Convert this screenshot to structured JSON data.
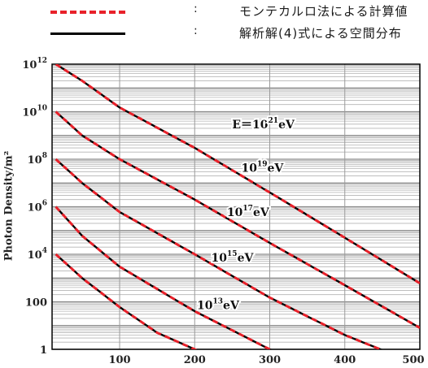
{
  "legend": {
    "monte_carlo": {
      "symbol": ":",
      "label": "モンテカルロ法による計算値",
      "color": "#e8212a"
    },
    "analytical": {
      "symbol": ":",
      "label": "解析解(4)式による空間分布",
      "color": "#000000"
    }
  },
  "chart_data": {
    "type": "line",
    "title": "",
    "xlabel": "",
    "ylabel": "Photon Density/m²",
    "xlim": [
      10,
      500
    ],
    "ylim": [
      1,
      1000000000000
    ],
    "yscale": "log",
    "grid": true,
    "x_ticks": [
      "100",
      "200",
      "300",
      "400",
      "500"
    ],
    "y_ticks": [
      {
        "base": "10",
        "exp": "12",
        "value": 1000000000000
      },
      {
        "base": "10",
        "exp": "10",
        "value": 10000000000
      },
      {
        "base": "10",
        "exp": "8",
        "value": 100000000
      },
      {
        "base": "10",
        "exp": "6",
        "value": 1000000
      },
      {
        "base": "10",
        "exp": "4",
        "value": 10000
      },
      {
        "base": "100",
        "exp": "",
        "value": 100
      },
      {
        "base": "1",
        "exp": "",
        "value": 1
      }
    ],
    "series": [
      {
        "label_prefix": "E＝",
        "label_base": "10",
        "label_exp": "21",
        "label_unit": "eV",
        "label_x": 250,
        "label_y": 2000000000,
        "points": [
          [
            15,
            1000000000000
          ],
          [
            50,
            200000000000
          ],
          [
            100,
            15000000000
          ],
          [
            200,
            300000000
          ],
          [
            300,
            4000000
          ],
          [
            400,
            50000
          ],
          [
            500,
            600
          ]
        ]
      },
      {
        "label_prefix": "",
        "label_base": "10",
        "label_exp": "19",
        "label_unit": "eV",
        "label_x": 262,
        "label_y": 30000000,
        "points": [
          [
            15,
            10000000000
          ],
          [
            50,
            1000000000
          ],
          [
            100,
            100000000
          ],
          [
            200,
            2000000
          ],
          [
            300,
            30000
          ],
          [
            400,
            500
          ],
          [
            500,
            8
          ]
        ]
      },
      {
        "label_prefix": "",
        "label_base": "10",
        "label_exp": "17",
        "label_unit": "eV",
        "label_x": 243,
        "label_y": 400000,
        "points": [
          [
            15,
            100000000
          ],
          [
            50,
            10000000
          ],
          [
            100,
            600000
          ],
          [
            200,
            10000
          ],
          [
            300,
            150
          ],
          [
            400,
            4
          ],
          [
            455,
            0.8
          ]
        ]
      },
      {
        "label_prefix": "",
        "label_base": "10",
        "label_exp": "15",
        "label_unit": "eV",
        "label_x": 222,
        "label_y": 5000,
        "points": [
          [
            15,
            1000000
          ],
          [
            50,
            60000
          ],
          [
            100,
            3000
          ],
          [
            200,
            40
          ],
          [
            300,
            1
          ],
          [
            330,
            0.5
          ]
        ]
      },
      {
        "label_prefix": "",
        "label_base": "10",
        "label_exp": "13",
        "label_unit": "eV",
        "label_x": 203,
        "label_y": 50,
        "points": [
          [
            15,
            10000
          ],
          [
            50,
            1000
          ],
          [
            100,
            60
          ],
          [
            150,
            5
          ],
          [
            200,
            1
          ],
          [
            215,
            0.5
          ]
        ]
      }
    ]
  }
}
